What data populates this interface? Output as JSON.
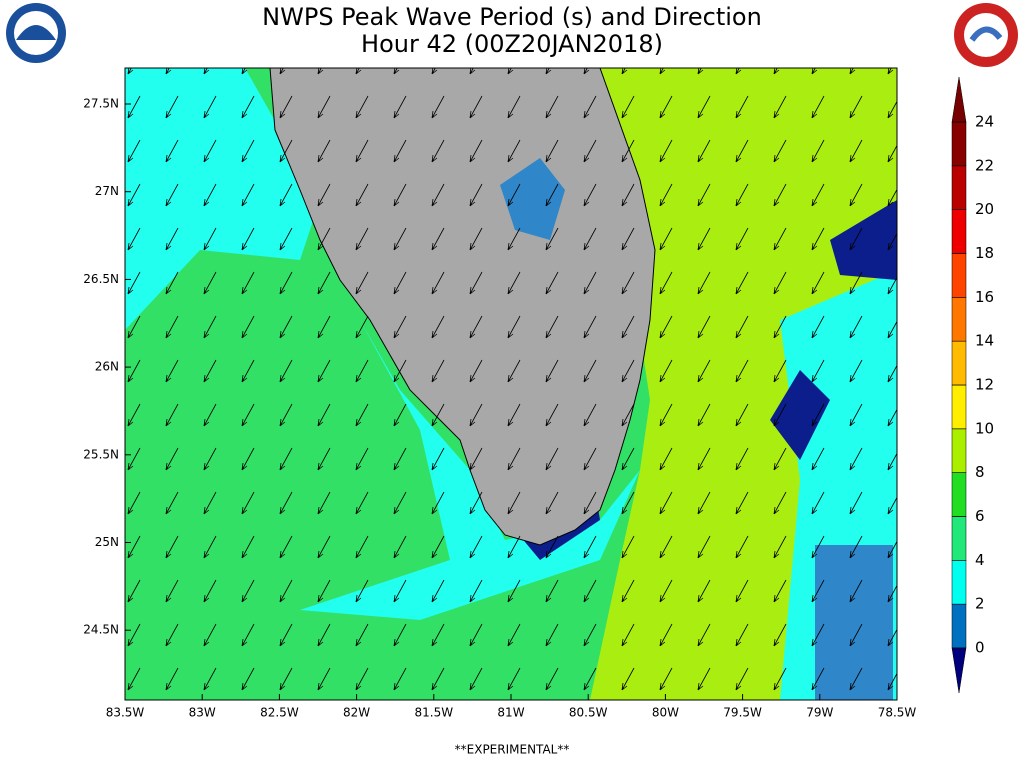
{
  "header": {
    "title": [
      "NWPS Peak Wave Period (s) and Direction",
      "Hour 42 (00Z20JAN2018)"
    ]
  },
  "map": {
    "lon_labels": [
      "83.5W",
      "83W",
      "82.5W",
      "82W",
      "81.5W",
      "81W",
      "80.5W",
      "80W",
      "79.5W",
      "79W",
      "78.5W"
    ],
    "lat_labels": [
      "27.5N",
      "27N",
      "26.5N",
      "26N",
      "25.5N",
      "25N",
      "24.5N"
    ]
  },
  "colorbar": {
    "ticks": [
      0,
      2,
      4,
      6,
      8,
      10,
      12,
      14,
      16,
      18,
      20,
      22,
      24
    ],
    "below_color": "#00007f",
    "colors": [
      "#0070c0",
      "#00ffee",
      "#22e87a",
      "#22dd22",
      "#aaee00",
      "#ffee00",
      "#ffbb00",
      "#ff7700",
      "#ff4400",
      "#ee0000",
      "#bb0000",
      "#880000"
    ],
    "above_color": "#770000"
  },
  "footer": "**EXPERIMENTAL**"
}
